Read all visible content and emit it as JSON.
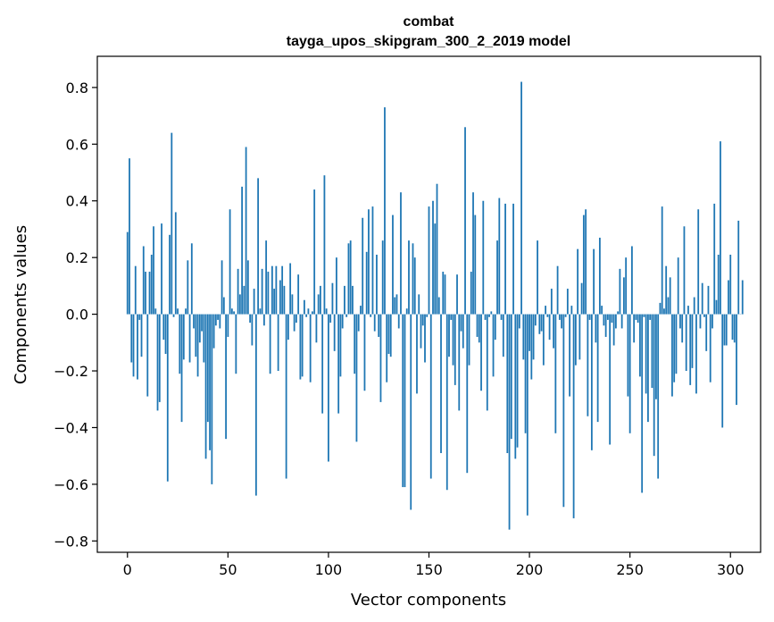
{
  "chart_data": {
    "type": "bar",
    "title": "combat",
    "subtitle": "tayga_upos_skipgram_300_2_2019 model",
    "xlabel": "Vector components",
    "ylabel": "Components values",
    "xlim": [
      -15,
      315
    ],
    "ylim": [
      -0.84,
      0.91
    ],
    "xticks": [
      0,
      50,
      100,
      150,
      200,
      250,
      300
    ],
    "xtick_labels": [
      "0",
      "50",
      "100",
      "150",
      "200",
      "250",
      "300"
    ],
    "yticks": [
      -0.8,
      -0.6,
      -0.4,
      -0.2,
      0.0,
      0.2,
      0.4,
      0.6,
      0.8
    ],
    "ytick_labels": [
      "−0.8",
      "−0.6",
      "−0.4",
      "−0.2",
      "0.0",
      "0.2",
      "0.4",
      "0.6",
      "0.8"
    ],
    "grid": false,
    "bar_color": "#1f77b4",
    "values": [
      0.29,
      0.55,
      -0.17,
      -0.22,
      0.17,
      -0.23,
      -0.02,
      -0.15,
      0.24,
      0.15,
      -0.29,
      0.15,
      0.21,
      0.31,
      0.02,
      -0.34,
      -0.31,
      0.32,
      -0.09,
      -0.14,
      -0.59,
      0.28,
      0.64,
      -0.01,
      0.36,
      0.02,
      -0.21,
      -0.38,
      -0.16,
      0.02,
      0.19,
      -0.17,
      0.25,
      -0.05,
      -0.15,
      -0.22,
      -0.1,
      -0.06,
      -0.17,
      -0.51,
      -0.38,
      -0.48,
      -0.6,
      -0.12,
      -0.04,
      -0.02,
      -0.05,
      0.19,
      0.06,
      -0.44,
      -0.08,
      0.37,
      0.02,
      0.01,
      -0.21,
      0.16,
      0.07,
      0.45,
      0.1,
      0.59,
      0.19,
      -0.03,
      -0.11,
      0.09,
      -0.64,
      0.48,
      0.02,
      0.16,
      -0.04,
      0.26,
      0.15,
      -0.21,
      0.17,
      0.09,
      0.17,
      -0.2,
      0.12,
      0.17,
      0.1,
      -0.58,
      -0.09,
      0.18,
      0.07,
      -0.06,
      -0.03,
      0.14,
      -0.23,
      -0.22,
      0.05,
      -0.01,
      0.02,
      -0.24,
      0.01,
      0.44,
      -0.1,
      0.07,
      0.1,
      -0.35,
      0.49,
      0.02,
      -0.52,
      -0.03,
      0.11,
      -0.13,
      0.2,
      -0.35,
      -0.22,
      -0.05,
      0.1,
      -0.01,
      0.25,
      0.26,
      0.1,
      -0.21,
      -0.45,
      -0.06,
      0.03,
      0.34,
      -0.27,
      0.22,
      0.37,
      -0.01,
      0.38,
      -0.06,
      0.21,
      -0.08,
      -0.31,
      0.26,
      0.73,
      -0.24,
      -0.14,
      -0.15,
      0.35,
      0.06,
      0.07,
      -0.05,
      0.43,
      -0.61,
      -0.61,
      0.02,
      0.26,
      -0.69,
      0.25,
      0.2,
      -0.28,
      0.07,
      -0.12,
      -0.04,
      -0.17,
      -0.01,
      0.38,
      -0.58,
      0.4,
      0.32,
      0.46,
      0.06,
      -0.49,
      0.15,
      0.14,
      -0.62,
      -0.15,
      -0.02,
      -0.18,
      -0.25,
      0.14,
      -0.34,
      -0.06,
      -0.12,
      0.66,
      -0.56,
      -0.18,
      0.15,
      0.43,
      0.35,
      -0.08,
      -0.1,
      -0.27,
      0.4,
      -0.02,
      -0.34,
      -0.01,
      0.01,
      -0.22,
      -0.09,
      0.26,
      0.41,
      -0.02,
      -0.15,
      0.39,
      -0.49,
      -0.76,
      -0.44,
      0.39,
      -0.51,
      -0.47,
      -0.05,
      0.82,
      -0.16,
      -0.42,
      -0.71,
      -0.13,
      -0.23,
      -0.16,
      -0.04,
      0.26,
      -0.07,
      -0.06,
      -0.18,
      0.03,
      -0.01,
      -0.09,
      0.09,
      -0.12,
      -0.42,
      0.17,
      -0.02,
      -0.05,
      -0.68,
      -0.01,
      0.09,
      -0.29,
      0.03,
      -0.72,
      -0.18,
      0.23,
      -0.16,
      0.11,
      0.35,
      0.37,
      -0.36,
      -0.02,
      -0.48,
      0.23,
      -0.1,
      -0.38,
      0.27,
      0.03,
      -0.04,
      -0.08,
      -0.02,
      -0.46,
      -0.03,
      -0.11,
      -0.05,
      0.01,
      0.16,
      -0.05,
      0.13,
      0.2,
      -0.29,
      -0.42,
      0.24,
      -0.1,
      -0.02,
      -0.03,
      -0.22,
      -0.63,
      -0.01,
      -0.28,
      -0.38,
      -0.02,
      -0.26,
      -0.5,
      -0.3,
      -0.58,
      0.04,
      0.38,
      0.02,
      0.17,
      0.06,
      0.13,
      -0.29,
      -0.24,
      -0.21,
      0.2,
      -0.05,
      -0.1,
      0.31,
      -0.2,
      0.03,
      -0.25,
      -0.19,
      0.06,
      -0.28,
      0.37,
      -0.05,
      0.11,
      -0.01,
      -0.13,
      0.1,
      -0.24,
      -0.05,
      0.39,
      0.05,
      0.21,
      0.61,
      -0.4,
      -0.11,
      -0.11,
      0.12,
      0.21,
      -0.09,
      -0.1,
      -0.32,
      0.33,
      0.0,
      0.12
    ]
  }
}
